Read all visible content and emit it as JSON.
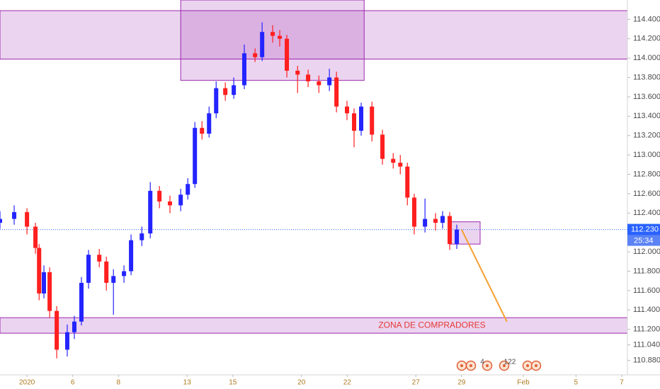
{
  "chart_data": {
    "type": "candlestick",
    "up_color": "#2424ff",
    "down_color": "#ff1f1f",
    "x": [
      -1.18,
      -0.56,
      0,
      0.37,
      0.53,
      0.74,
      0.99,
      1.3,
      1.76,
      2.07,
      2.38,
      2.69,
      3.16,
      3.47,
      3.78,
      4.24,
      4.55,
      5.02,
      5.39,
      5.79,
      6.25,
      6.72,
      7.03,
      7.34,
      7.65,
      7.96,
      8.27,
      8.67,
      9.04,
      9.5,
      9.97,
      10.28,
      10.74,
      11.05,
      11.36,
      11.83,
      12.29,
      12.76,
      13.22,
      13.53,
      13.99,
      14.3,
      14.61,
      15.08,
      15.54,
      16.01,
      16.32,
      16.63,
      16.93,
      17.4,
      17.86,
      18.17,
      18.48,
      18.79
    ],
    "open": [
      112.3,
      112.34,
      112.41,
      112.26,
      112.04,
      111.57,
      111.79,
      111.39,
      110.99,
      111.17,
      111.28,
      111.68,
      111.97,
      111.9,
      111.68,
      111.75,
      111.8,
      112.12,
      112.19,
      112.63,
      112.52,
      112.48,
      112.59,
      112.7,
      113.28,
      113.22,
      113.43,
      113.69,
      113.62,
      113.72,
      114.05,
      114.01,
      114.27,
      114.23,
      114.2,
      113.87,
      113.83,
      113.76,
      113.72,
      113.8,
      113.5,
      113.43,
      113.25,
      113.5,
      113.21,
      112.96,
      112.92,
      112.88,
      112.56,
      112.26,
      112.34,
      112.3,
      112.37,
      112.08
    ],
    "high": [
      112.42,
      112.48,
      112.45,
      112.3,
      112.08,
      111.86,
      111.84,
      111.44,
      111.25,
      111.34,
      111.74,
      112.02,
      112.03,
      111.95,
      111.82,
      111.86,
      112.18,
      112.26,
      112.72,
      112.68,
      112.58,
      112.65,
      112.76,
      113.34,
      113.35,
      113.5,
      113.76,
      113.75,
      113.8,
      114.14,
      114.1,
      114.37,
      114.34,
      114.29,
      114.24,
      113.92,
      113.88,
      113.82,
      113.89,
      113.86,
      113.56,
      113.48,
      113.54,
      113.55,
      113.26,
      113.02,
      113.0,
      112.92,
      112.6,
      112.55,
      112.4,
      112.42,
      112.41,
      112.28
    ],
    "low": [
      112.24,
      112.28,
      112.18,
      111.98,
      111.5,
      111.52,
      111.32,
      110.9,
      110.92,
      111.1,
      111.24,
      111.62,
      111.84,
      111.6,
      111.35,
      111.68,
      111.76,
      112.06,
      112.14,
      112.45,
      112.4,
      112.42,
      112.54,
      112.66,
      113.16,
      113.18,
      113.38,
      113.56,
      113.58,
      113.68,
      113.96,
      113.97,
      114.16,
      114.12,
      113.8,
      113.64,
      113.7,
      113.64,
      113.66,
      113.44,
      113.36,
      113.08,
      113.2,
      113.14,
      112.9,
      112.86,
      112.8,
      112.48,
      112.18,
      112.2,
      112.22,
      112.24,
      112.02,
      112.03
    ],
    "close": [
      112.34,
      112.41,
      112.26,
      112.04,
      111.57,
      111.79,
      111.39,
      110.99,
      111.17,
      111.28,
      111.68,
      111.97,
      111.9,
      111.68,
      111.75,
      111.8,
      112.12,
      112.19,
      112.63,
      112.52,
      112.48,
      112.59,
      112.7,
      113.28,
      113.22,
      113.43,
      113.69,
      113.62,
      113.72,
      114.05,
      114.01,
      114.27,
      114.23,
      114.2,
      113.87,
      113.83,
      113.76,
      113.72,
      113.8,
      113.5,
      113.43,
      113.25,
      113.5,
      113.21,
      112.96,
      112.92,
      112.88,
      112.56,
      112.26,
      112.34,
      112.3,
      112.37,
      112.08,
      112.23
    ],
    "xlim": [
      -1.18,
      26.25
    ],
    "ylim": [
      110.73,
      114.6
    ],
    "xticks": [
      {
        "value": 0,
        "label": "2020"
      },
      {
        "value": 2,
        "label": "6"
      },
      {
        "value": 4,
        "label": "8"
      },
      {
        "value": 7,
        "label": "13"
      },
      {
        "value": 9,
        "label": "15"
      },
      {
        "value": 12,
        "label": "20"
      },
      {
        "value": 14,
        "label": "22"
      },
      {
        "value": 17,
        "label": "27"
      },
      {
        "value": 19,
        "label": "29"
      },
      {
        "value": 21.7,
        "label": "Feb"
      },
      {
        "value": 24,
        "label": "5"
      },
      {
        "value": 26,
        "label": "7"
      }
    ],
    "yticks": [
      {
        "value": 114.4,
        "label": "114.400"
      },
      {
        "value": 114.2,
        "label": "114.200"
      },
      {
        "value": 114,
        "label": "114.000"
      },
      {
        "value": 113.8,
        "label": "113.800"
      },
      {
        "value": 113.6,
        "label": "113.600"
      },
      {
        "value": 113.4,
        "label": "113.400"
      },
      {
        "value": 113.2,
        "label": "113.200"
      },
      {
        "value": 113,
        "label": "113.000"
      },
      {
        "value": 112.8,
        "label": "112.800"
      },
      {
        "value": 112.6,
        "label": "112.600"
      },
      {
        "value": 112.4,
        "label": "112.400"
      },
      {
        "value": 112,
        "label": "112.000"
      },
      {
        "value": 111.8,
        "label": "111.800"
      },
      {
        "value": 111.6,
        "label": "111.600"
      },
      {
        "value": 111.4,
        "label": "111.400"
      },
      {
        "value": 111.2,
        "label": "111.200"
      },
      {
        "value": 111.04,
        "label": "111.040"
      },
      {
        "value": 110.88,
        "label": "110.880"
      }
    ],
    "grid": false,
    "zones": [
      {
        "x0": -1.18,
        "x1": 26.25,
        "y0": 113.99,
        "y1": 114.49
      },
      {
        "x0": 6.72,
        "x1": 14.74,
        "y0": 113.77,
        "y1": 114.6
      },
      {
        "x0": -1.18,
        "x1": 26.25,
        "y0": 111.16,
        "y1": 111.32,
        "label": "ZONA DE COMPRADORES"
      },
      {
        "x0": 18.48,
        "x1": 19.81,
        "y0": 112.08,
        "y1": 112.31
      }
    ],
    "zone_color": "#9c27b0",
    "arrow": {
      "x": [
        19.0,
        20.98
      ],
      "y": [
        112.23,
        111.28
      ],
      "color": "#f7a030"
    },
    "last_price": {
      "value": 112.23,
      "label": "112.230",
      "countdown": "25:34",
      "color": "#2962ff"
    },
    "events": [
      "4",
      "122"
    ]
  }
}
